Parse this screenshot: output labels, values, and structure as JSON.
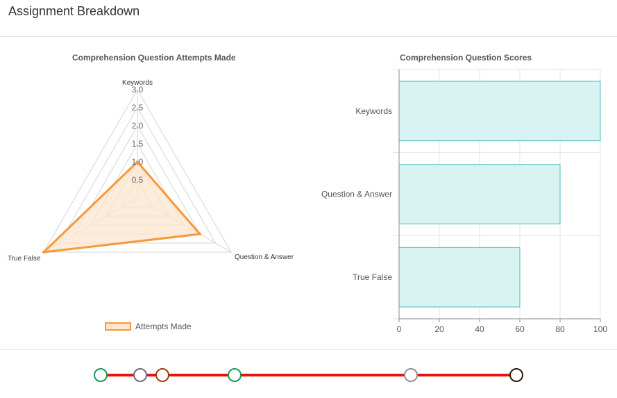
{
  "page": {
    "title": "Assignment Breakdown"
  },
  "chart_data": [
    {
      "type": "radar",
      "title": "Comprehension Question Attempts Made",
      "axes": [
        "Keywords",
        "Question & Answer",
        "True False"
      ],
      "rlim": [
        0,
        3.0
      ],
      "ticks": [
        "0.5",
        "1.0",
        "1.5",
        "2.0",
        "2.5",
        "3.0"
      ],
      "series": [
        {
          "name": "Attempts Made",
          "values": [
            1,
            2,
            3
          ],
          "color": "#f7983a",
          "fill": "#fde6cf"
        }
      ],
      "legend": "bottom",
      "grid": true
    },
    {
      "type": "bar",
      "orientation": "horizontal",
      "title": "Comprehension Question Scores",
      "categories": [
        "Keywords",
        "Question & Answer",
        "True False"
      ],
      "values": [
        100,
        80,
        60
      ],
      "xlim": [
        0,
        100
      ],
      "ticks": [
        "0",
        "20",
        "40",
        "60",
        "80",
        "100"
      ],
      "color": "#4bbcba",
      "fill": "#d9f2f2",
      "grid": true
    }
  ],
  "timeline": {
    "line_color": "#e8120c",
    "nodes": [
      {
        "color": "#1a9a52"
      },
      {
        "color": "#6e6a80"
      },
      {
        "color": "#9b3e0e"
      },
      {
        "color": "#1a9a52"
      },
      {
        "color": "#909090"
      },
      {
        "color": "#2a1a10"
      }
    ]
  }
}
